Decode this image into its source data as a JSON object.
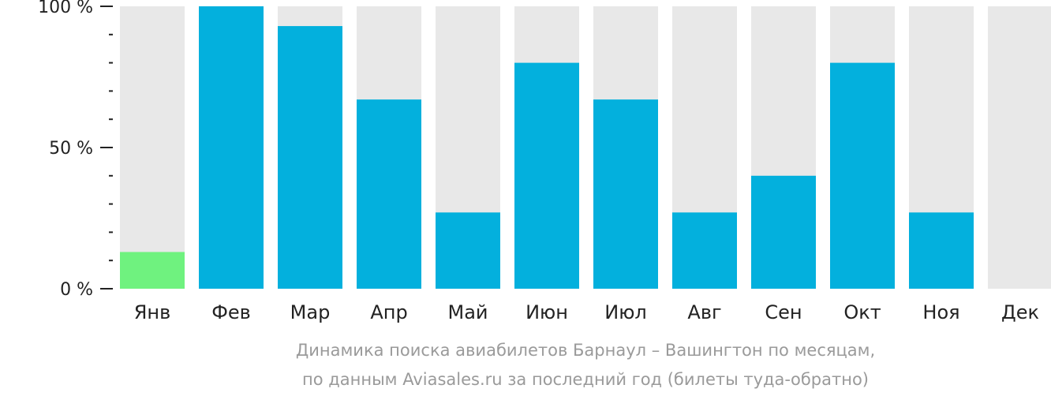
{
  "chart_data": {
    "type": "bar",
    "categories": [
      "Янв",
      "Фев",
      "Мар",
      "Апр",
      "Май",
      "Июн",
      "Июл",
      "Авг",
      "Сен",
      "Окт",
      "Ноя",
      "Дек"
    ],
    "values": [
      13,
      100,
      93,
      67,
      27,
      80,
      67,
      27,
      40,
      80,
      27,
      0
    ],
    "ylim": [
      0,
      100
    ],
    "y_ticks": [
      {
        "value": 100,
        "label": "100 %"
      },
      {
        "value": 50,
        "label": "50 %"
      },
      {
        "value": 0,
        "label": "0 %"
      }
    ],
    "minor_tick_step": 10,
    "highlight_index": 0,
    "colors": {
      "bar": "#03b0dd",
      "highlight": "#6ff27f",
      "track": "#e8e8e8",
      "axis": "#222222",
      "caption": "#9a9a9a"
    },
    "caption_lines": [
      "Динамика поиска авиабилетов Барнаул – Вашингтон по месяцам,",
      "по данным Aviasales.ru за последний год (билеты туда-обратно)"
    ]
  }
}
